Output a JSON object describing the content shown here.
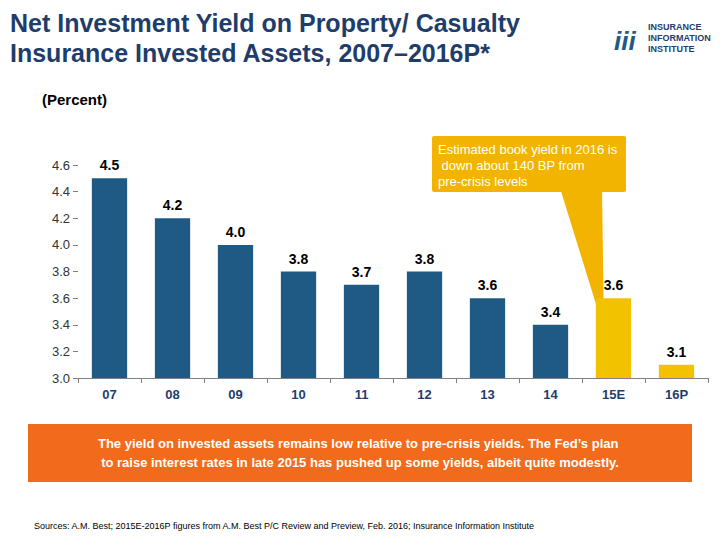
{
  "chart_data": {
    "type": "bar",
    "title": "Net Investment Yield on Property/ Casualty Insurance Invested Assets, 2007–2016P*",
    "y_label": "(Percent)",
    "categories": [
      "07",
      "08",
      "09",
      "10",
      "11",
      "12",
      "13",
      "14",
      "15E",
      "16P"
    ],
    "values": [
      4.5,
      4.2,
      4.0,
      3.8,
      3.7,
      3.8,
      3.6,
      3.4,
      3.6,
      3.1
    ],
    "value_labels": [
      "4.5",
      "4.2",
      "4.0",
      "3.8",
      "3.7",
      "3.8",
      "3.6",
      "3.4",
      "3.6",
      "3.1"
    ],
    "colors": [
      "#1f5a85",
      "#1f5a85",
      "#1f5a85",
      "#1f5a85",
      "#1f5a85",
      "#1f5a85",
      "#1f5a85",
      "#1f5a85",
      "#f2c100",
      "#f2c100"
    ],
    "ylim": [
      3,
      4.6
    ],
    "yticks": [
      {
        "value": 3,
        "label": "3.0"
      },
      3.2,
      3.4,
      3.6,
      3.8,
      {
        "value": 4,
        "label": "4.0"
      },
      4.2,
      4.4,
      4.6
    ],
    "grid": false,
    "data_labels": true,
    "annotation": "Estimated book yield in 2016 is down about 140 BP from pre-crisis levels",
    "banner": "The yield on invested assets remains low relative to pre-crisis yields. The Fed’s plan to raise interest rates in late 2015 has pushed up some yields, albeit quite modestly.",
    "source": "Sources: A.M. Best; 2015E-2016P figures from A.M. Best P/C Review and Preview, Feb. 2016; Insurance Information Institute",
    "logo": [
      "iii",
      "INSURANCE",
      "INFORMATION",
      "INSTITUTE"
    ]
  }
}
